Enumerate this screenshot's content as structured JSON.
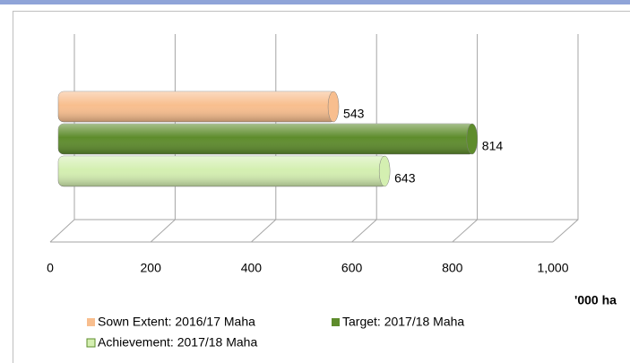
{
  "chart_data": {
    "type": "bar",
    "orientation": "horizontal",
    "categories": [
      null
    ],
    "series": [
      {
        "name": "Sown Extent: 2016/17 Maha",
        "color": "#f8be8e",
        "values": [
          543
        ]
      },
      {
        "name": "Target: 2017/18  Maha",
        "color": "#5e8c2c",
        "values": [
          814
        ]
      },
      {
        "name": "Achievement: 2017/18 Maha",
        "color": "#d4efb1",
        "values": [
          643
        ]
      }
    ],
    "xlim": [
      0,
      1000
    ],
    "xticks": [
      0,
      200,
      400,
      600,
      800,
      {
        "value": 1000,
        "label": "1,000"
      }
    ],
    "xlabel": "'000 ha",
    "grid": true,
    "legend": "bottom"
  }
}
